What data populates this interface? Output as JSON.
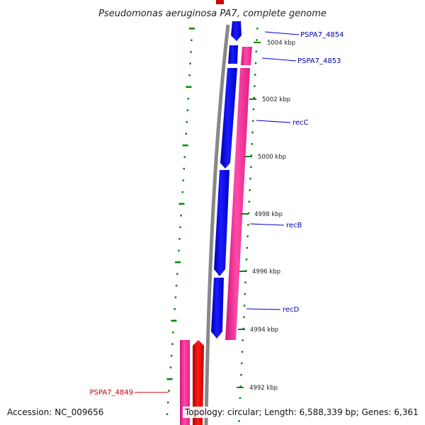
{
  "title": "Pseudomonas aeruginosa PA7, complete genome",
  "accession": "Accession: NC_009656",
  "topology": "Topology: circular; Length: 6,588,339 bp; Genes: 6,361",
  "ticks": [
    "5004 kbp",
    "5002 kbp",
    "5000 kbp",
    "4998 kbp",
    "4996 kbp",
    "4994 kbp",
    "4992 kbp"
  ],
  "genes": {
    "PSPA7_4854": "PSPA7_4854",
    "PSPA7_4853": "PSPA7_4853",
    "recC": "recC",
    "recB": "recB",
    "recD": "recD",
    "PSPA7_4849": "PSPA7_4849"
  },
  "colors": {
    "forward_cds": "#0000ee",
    "reverse_cds": "#ff3399",
    "other_cds": "#ee0000",
    "backbone": "#888888",
    "tick": "#008800",
    "label_forward": "#0000aa",
    "label_reverse": "#cc0000"
  }
}
